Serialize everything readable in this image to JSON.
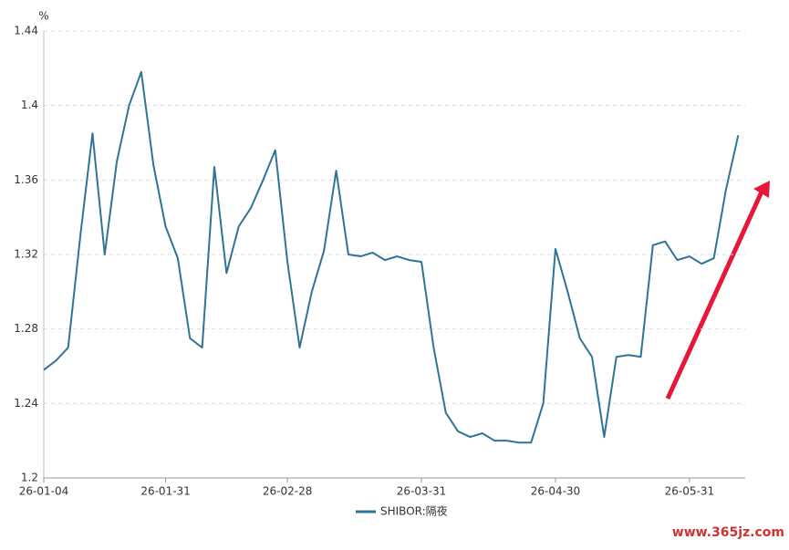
{
  "chart_data": {
    "type": "line",
    "y_unit": "%",
    "categories": [
      "26-01-04",
      null,
      null,
      null,
      null,
      null,
      null,
      null,
      null,
      null,
      "26-01-31",
      null,
      null,
      null,
      null,
      null,
      null,
      null,
      null,
      null,
      "26-02-28",
      null,
      null,
      null,
      null,
      null,
      null,
      null,
      null,
      null,
      null,
      "26-03-31",
      null,
      null,
      null,
      null,
      null,
      null,
      null,
      null,
      null,
      null,
      "26-04-30",
      null,
      null,
      null,
      null,
      null,
      null,
      null,
      null,
      null,
      null,
      "26-05-31",
      null,
      null,
      null,
      null
    ],
    "series": [
      {
        "name": "SHIBOR:隔夜",
        "color": "#2f7498",
        "values": [
          1.258,
          1.263,
          1.27,
          1.33,
          1.385,
          1.32,
          1.37,
          1.4,
          1.418,
          1.368,
          1.335,
          1.318,
          1.275,
          1.27,
          1.367,
          1.31,
          1.335,
          1.345,
          1.36,
          1.376,
          1.316,
          1.27,
          1.3,
          1.322,
          1.365,
          1.32,
          1.319,
          1.321,
          1.317,
          1.319,
          1.317,
          1.316,
          1.27,
          1.235,
          1.225,
          1.222,
          1.224,
          1.22,
          1.22,
          1.219,
          1.219,
          1.24,
          1.323,
          1.3,
          1.275,
          1.265,
          1.222,
          1.265,
          1.266,
          1.265,
          1.325,
          1.327,
          1.317,
          1.319,
          1.315,
          1.318,
          1.355,
          1.384
        ]
      }
    ],
    "ylim": [
      1.2,
      1.44
    ],
    "yticks": [
      1.2,
      1.24,
      1.28,
      1.32,
      1.36,
      1.4,
      1.44
    ],
    "grid": true,
    "legend": "bottom",
    "watermark": "www.365jz.com"
  }
}
